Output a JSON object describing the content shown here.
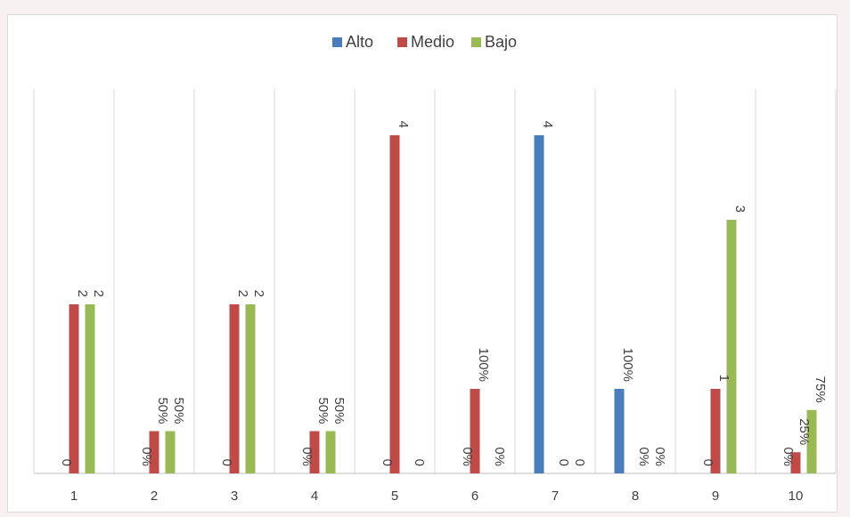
{
  "chart_data": {
    "type": "bar",
    "categories": [
      "1",
      "2",
      "3",
      "4",
      "5",
      "6",
      "7",
      "8",
      "9",
      "10"
    ],
    "series": [
      {
        "name": "Alto",
        "color": "#4a7ebb",
        "values": [
          0,
          0,
          0,
          0,
          0,
          0,
          4,
          1,
          0,
          0
        ],
        "labels": [
          "0",
          "0%",
          "0",
          "0%",
          "0",
          "0%",
          "4",
          "100%",
          "0",
          "0%"
        ]
      },
      {
        "name": "Medio",
        "color": "#be4b48",
        "values": [
          2,
          0.5,
          2,
          0.5,
          4,
          1,
          0,
          0,
          1,
          0.25
        ],
        "labels": [
          "2",
          "50%",
          "2",
          "50%",
          "4",
          "100%",
          "0",
          "0%",
          "1",
          "25%"
        ]
      },
      {
        "name": "Bajo",
        "color": "#98b954",
        "values": [
          2,
          0.5,
          2,
          0.5,
          0,
          0,
          0,
          0,
          3,
          0.75
        ],
        "labels": [
          "2",
          "50%",
          "2",
          "50%",
          "0",
          "0%",
          "0",
          "0%",
          "3",
          "75%"
        ]
      }
    ],
    "ylim": [
      0,
      4.5
    ],
    "grid": "vertical category separators",
    "legend_position": "top-center"
  }
}
